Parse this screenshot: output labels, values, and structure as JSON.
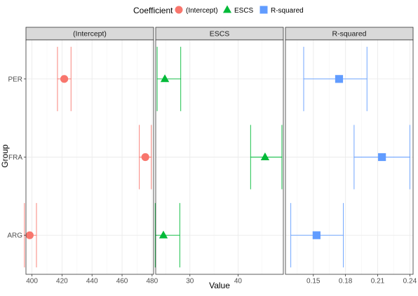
{
  "legend": {
    "title": "Coefficient",
    "position": "top",
    "entries": [
      {
        "label": "(Intercept)",
        "shape": "circle",
        "color": "#F8766D"
      },
      {
        "label": "ESCS",
        "shape": "triangle",
        "color": "#00BA38"
      },
      {
        "label": "R-squared",
        "shape": "square",
        "color": "#619CFF"
      }
    ]
  },
  "axes": {
    "xlabel": "Value",
    "ylabel": "Group"
  },
  "chart_data": {
    "type": "scatter",
    "categories": [
      "PER",
      "FRA",
      "ARG"
    ],
    "grid": true,
    "panels": [
      {
        "strip": "(Intercept)",
        "shape": "circle",
        "color": "#F8766D",
        "xlim": [
          396,
          481
        ],
        "ticks": [
          400,
          420,
          440,
          460,
          480
        ],
        "tick_labels": [
          "400",
          "420",
          "440",
          "460",
          "480"
        ],
        "points": [
          {
            "group": "PER",
            "value": 421.5,
            "lower": 417,
            "upper": 426
          },
          {
            "group": "FRA",
            "value": 475.5,
            "lower": 471.5,
            "upper": 479.5
          },
          {
            "group": "ARG",
            "value": 398.5,
            "lower": 395,
            "upper": 403
          }
        ]
      },
      {
        "strip": "ESCS",
        "shape": "triangle",
        "color": "#00BA38",
        "xlim": [
          22.9,
          49.4
        ],
        "ticks": [
          30,
          40
        ],
        "tick_labels": [
          "30",
          "40"
        ],
        "points": [
          {
            "group": "PER",
            "value": 24.8,
            "lower": 23.2,
            "upper": 28.1
          },
          {
            "group": "FRA",
            "value": 45.6,
            "lower": 42.6,
            "upper": 49.1
          },
          {
            "group": "ARG",
            "value": 24.5,
            "lower": 22.8,
            "upper": 27.9
          }
        ]
      },
      {
        "strip": "R-squared",
        "shape": "square",
        "color": "#619CFF",
        "xlim": [
          0.124,
          0.243
        ],
        "ticks": [
          0.15,
          0.18,
          0.21,
          0.24
        ],
        "tick_labels": [
          "0.15",
          "0.18",
          "0.21",
          "0.24"
        ],
        "points": [
          {
            "group": "PER",
            "value": 0.174,
            "lower": 0.141,
            "upper": 0.2
          },
          {
            "group": "FRA",
            "value": 0.214,
            "lower": 0.188,
            "upper": 0.24
          },
          {
            "group": "ARG",
            "value": 0.153,
            "lower": 0.129,
            "upper": 0.178
          }
        ]
      }
    ]
  }
}
